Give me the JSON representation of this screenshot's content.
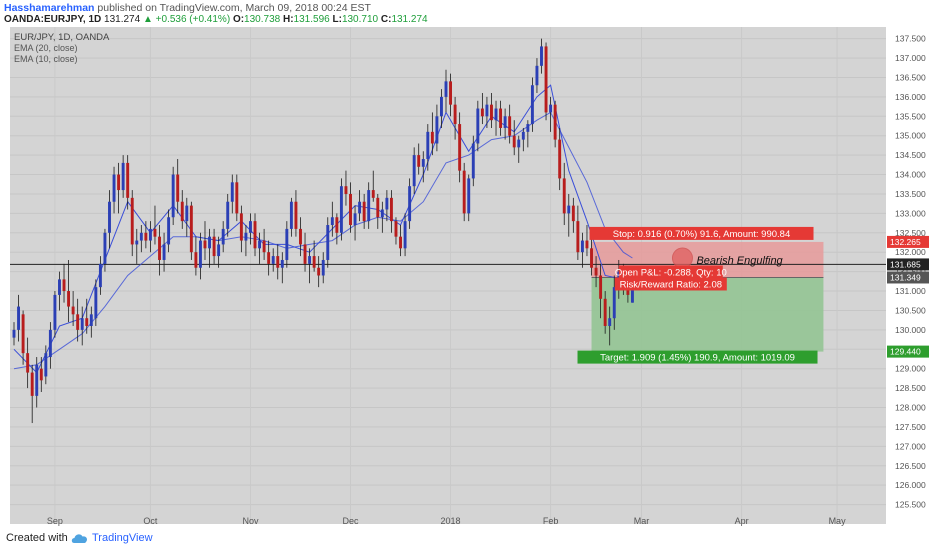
{
  "header": {
    "author": "Hasshamarehman",
    "published_text": "published on TradingView.com, March 09, 2018 00:24 EST",
    "symbol": "OANDA:EURJPY, 1D",
    "last": "131.274",
    "change": "+0.536 (+0.41%)",
    "open_label": "O:",
    "open": "130.738",
    "high_label": "H:",
    "high": "131.596",
    "low_label": "L:",
    "low": "130.710",
    "close_label": "C:",
    "close": "131.274"
  },
  "legend": {
    "title": "EUR/JPY, 1D, OANDA",
    "ema20": "EMA (20, close)",
    "ema10": "EMA (10, close)"
  },
  "footer": {
    "created_with": "Created with",
    "brand": "TradingView"
  },
  "colors": {
    "background": "#d4d4d4",
    "up_candle": "#2b3fb5",
    "down_candle": "#b81d1d",
    "ema": "#3a4ed8",
    "stop_zone": "#e69a9a",
    "target_zone": "#93c493",
    "stop_label": "#e53935",
    "target_label": "#2e9e2e"
  },
  "chart_data": {
    "type": "candlestick",
    "ylim": [
      125.0,
      137.8
    ],
    "y_ticks": [
      "125.500",
      "126.000",
      "126.500",
      "127.000",
      "127.500",
      "128.000",
      "128.500",
      "129.000",
      "129.500",
      "130.000",
      "130.500",
      "131.000",
      "131.500",
      "132.000",
      "132.500",
      "133.000",
      "133.500",
      "134.000",
      "134.500",
      "135.000",
      "135.500",
      "136.000",
      "136.500",
      "137.000",
      "137.500"
    ],
    "x_ticks": [
      {
        "label": "Sep",
        "x": 9
      },
      {
        "label": "Oct",
        "x": 30
      },
      {
        "label": "Nov",
        "x": 52
      },
      {
        "label": "Dec",
        "x": 74
      },
      {
        "label": "2018",
        "x": 96
      },
      {
        "label": "Feb",
        "x": 118
      },
      {
        "label": "Mar",
        "x": 138
      },
      {
        "label": "Apr",
        "x": 160
      },
      {
        "label": "May",
        "x": 181
      }
    ],
    "x_max": 190,
    "horizontal_line": "131.685",
    "price_labels": [
      {
        "value": "132.265",
        "kind": "stop"
      },
      {
        "value": "131.685",
        "kind": "line"
      },
      {
        "value": "131.349",
        "kind": "entry"
      },
      {
        "value": "129.440",
        "kind": "target"
      }
    ],
    "position": {
      "type": "short",
      "entry": 131.349,
      "stop": 132.265,
      "target": 129.44,
      "x_start": 127,
      "x_end": 178,
      "stop_text": "Stop: 0.916 (0.70%) 91.6, Amount: 990.84",
      "target_text": "Target: 1.909 (1.45%) 190.9, Amount: 1019.09",
      "pnl_text": "Open P&L: -0.288, Qty: 10",
      "rr_text": "Risk/Reward Ratio: 2.08"
    },
    "annotation": {
      "text": "Bearish Engulfing",
      "x": 147,
      "y": 131.8
    },
    "candles": [
      [
        0,
        129.8,
        130.2,
        129.6,
        130.0
      ],
      [
        1,
        130.0,
        130.9,
        129.7,
        130.6
      ],
      [
        2,
        130.4,
        130.5,
        129.1,
        129.4
      ],
      [
        3,
        129.4,
        129.8,
        128.5,
        128.9
      ],
      [
        4,
        128.9,
        129.1,
        127.6,
        128.3
      ],
      [
        5,
        128.3,
        129.3,
        128.0,
        129.1
      ],
      [
        6,
        129.0,
        129.3,
        128.4,
        128.7
      ],
      [
        7,
        128.8,
        129.6,
        128.6,
        129.4
      ],
      [
        8,
        129.3,
        130.2,
        129.0,
        130.0
      ],
      [
        9,
        130.0,
        131.0,
        129.8,
        130.9
      ],
      [
        10,
        130.9,
        131.5,
        130.5,
        131.3
      ],
      [
        11,
        131.3,
        131.7,
        130.7,
        131.0
      ],
      [
        12,
        131.0,
        131.8,
        130.2,
        130.6
      ],
      [
        13,
        130.6,
        131.0,
        130.1,
        130.4
      ],
      [
        14,
        130.4,
        130.8,
        129.7,
        130.0
      ],
      [
        15,
        130.0,
        130.6,
        129.6,
        130.3
      ],
      [
        16,
        130.3,
        130.8,
        129.9,
        130.1
      ],
      [
        17,
        130.1,
        130.6,
        129.8,
        130.4
      ],
      [
        18,
        130.3,
        131.3,
        130.1,
        131.1
      ],
      [
        19,
        131.1,
        131.9,
        130.9,
        131.7
      ],
      [
        20,
        131.7,
        132.6,
        131.5,
        132.5
      ],
      [
        21,
        132.5,
        133.6,
        132.1,
        133.3
      ],
      [
        22,
        133.3,
        134.2,
        133.0,
        134.0
      ],
      [
        23,
        134.0,
        134.3,
        133.0,
        133.6
      ],
      [
        24,
        133.6,
        134.5,
        133.4,
        134.3
      ],
      [
        25,
        134.3,
        134.5,
        133.1,
        133.4
      ],
      [
        26,
        133.4,
        133.6,
        131.9,
        132.2
      ],
      [
        27,
        132.2,
        132.6,
        131.7,
        132.3
      ],
      [
        28,
        132.3,
        132.7,
        132.0,
        132.5
      ],
      [
        29,
        132.5,
        132.8,
        132.1,
        132.3
      ],
      [
        30,
        132.3,
        132.8,
        132.0,
        132.6
      ],
      [
        31,
        132.6,
        133.2,
        132.2,
        132.4
      ],
      [
        32,
        132.4,
        132.7,
        131.4,
        131.8
      ],
      [
        33,
        131.8,
        132.5,
        131.5,
        132.2
      ],
      [
        34,
        132.2,
        133.1,
        132.0,
        132.9
      ],
      [
        35,
        132.9,
        134.2,
        132.7,
        134.0
      ],
      [
        36,
        134.0,
        134.4,
        133.0,
        133.3
      ],
      [
        37,
        133.3,
        133.6,
        132.6,
        132.8
      ],
      [
        38,
        132.8,
        133.4,
        132.4,
        133.2
      ],
      [
        39,
        133.2,
        133.3,
        131.8,
        132.0
      ],
      [
        40,
        132.0,
        132.4,
        131.4,
        131.6
      ],
      [
        41,
        131.6,
        132.5,
        131.3,
        132.3
      ],
      [
        42,
        132.3,
        132.8,
        131.8,
        132.1
      ],
      [
        43,
        132.1,
        132.6,
        131.6,
        132.4
      ],
      [
        44,
        132.4,
        132.6,
        131.7,
        131.9
      ],
      [
        45,
        131.9,
        132.4,
        131.6,
        132.2
      ],
      [
        46,
        132.2,
        132.8,
        132.0,
        132.6
      ],
      [
        47,
        132.6,
        133.5,
        132.4,
        133.3
      ],
      [
        48,
        133.3,
        134.0,
        133.0,
        133.8
      ],
      [
        49,
        133.8,
        134.0,
        132.8,
        133.0
      ],
      [
        50,
        133.0,
        133.2,
        132.0,
        132.3
      ],
      [
        51,
        132.3,
        132.7,
        131.9,
        132.5
      ],
      [
        52,
        132.5,
        133.0,
        132.2,
        132.8
      ],
      [
        53,
        132.8,
        133.0,
        131.9,
        132.1
      ],
      [
        54,
        132.1,
        132.5,
        131.7,
        132.3
      ],
      [
        55,
        132.3,
        132.6,
        131.8,
        132.0
      ],
      [
        56,
        132.0,
        132.3,
        131.4,
        131.7
      ],
      [
        57,
        131.7,
        132.1,
        131.5,
        131.9
      ],
      [
        58,
        131.9,
        132.2,
        131.3,
        131.6
      ],
      [
        59,
        131.6,
        132.0,
        131.2,
        131.8
      ],
      [
        60,
        131.8,
        132.8,
        131.6,
        132.6
      ],
      [
        61,
        132.6,
        133.4,
        132.4,
        133.3
      ],
      [
        62,
        133.3,
        133.6,
        132.4,
        132.6
      ],
      [
        63,
        132.6,
        132.9,
        131.9,
        132.2
      ],
      [
        64,
        132.2,
        132.5,
        131.5,
        131.7
      ],
      [
        65,
        131.7,
        132.1,
        131.2,
        131.9
      ],
      [
        66,
        131.9,
        132.3,
        131.5,
        131.6
      ],
      [
        67,
        131.6,
        131.9,
        131.1,
        131.4
      ],
      [
        68,
        131.4,
        132.0,
        131.2,
        131.8
      ],
      [
        69,
        131.8,
        132.9,
        131.6,
        132.7
      ],
      [
        70,
        132.7,
        133.3,
        132.4,
        132.9
      ],
      [
        71,
        132.9,
        133.0,
        132.2,
        132.5
      ],
      [
        72,
        132.5,
        133.9,
        132.3,
        133.7
      ],
      [
        73,
        133.7,
        134.1,
        133.2,
        133.5
      ],
      [
        74,
        133.5,
        133.8,
        132.5,
        132.7
      ],
      [
        75,
        132.7,
        133.2,
        132.3,
        133.0
      ],
      [
        76,
        133.0,
        133.6,
        132.8,
        133.3
      ],
      [
        77,
        133.3,
        133.5,
        132.6,
        132.8
      ],
      [
        78,
        132.8,
        133.8,
        132.6,
        133.6
      ],
      [
        79,
        133.6,
        134.1,
        133.3,
        133.4
      ],
      [
        80,
        133.4,
        133.5,
        132.6,
        132.9
      ],
      [
        81,
        132.9,
        133.3,
        132.5,
        133.1
      ],
      [
        82,
        133.1,
        133.6,
        132.8,
        133.4
      ],
      [
        83,
        133.4,
        133.6,
        132.5,
        132.8
      ],
      [
        84,
        132.8,
        132.9,
        132.2,
        132.4
      ],
      [
        85,
        132.4,
        132.7,
        131.9,
        132.1
      ],
      [
        86,
        132.1,
        133.0,
        131.9,
        132.8
      ],
      [
        87,
        132.8,
        133.9,
        132.6,
        133.7
      ],
      [
        88,
        133.7,
        134.7,
        133.5,
        134.5
      ],
      [
        89,
        134.5,
        134.8,
        134.0,
        134.2
      ],
      [
        90,
        134.2,
        134.6,
        133.8,
        134.4
      ],
      [
        91,
        134.4,
        135.3,
        134.1,
        135.1
      ],
      [
        92,
        135.1,
        135.6,
        134.5,
        134.8
      ],
      [
        93,
        134.8,
        135.8,
        134.6,
        135.5
      ],
      [
        94,
        135.5,
        136.2,
        135.2,
        136.0
      ],
      [
        95,
        136.0,
        136.7,
        135.6,
        136.4
      ],
      [
        96,
        136.4,
        136.6,
        135.5,
        135.8
      ],
      [
        97,
        135.8,
        136.0,
        134.9,
        135.3
      ],
      [
        98,
        135.3,
        135.6,
        133.8,
        134.1
      ],
      [
        99,
        134.1,
        134.3,
        132.8,
        133.0
      ],
      [
        100,
        133.0,
        134.0,
        132.8,
        133.9
      ],
      [
        101,
        133.9,
        135.0,
        133.7,
        134.8
      ],
      [
        102,
        134.8,
        135.9,
        134.6,
        135.7
      ],
      [
        103,
        135.7,
        136.1,
        135.3,
        135.5
      ],
      [
        104,
        135.5,
        136.0,
        135.2,
        135.8
      ],
      [
        105,
        135.8,
        136.1,
        135.2,
        135.4
      ],
      [
        106,
        135.4,
        135.9,
        135.0,
        135.7
      ],
      [
        107,
        135.7,
        135.9,
        135.0,
        135.2
      ],
      [
        108,
        135.2,
        135.7,
        134.9,
        135.5
      ],
      [
        109,
        135.5,
        135.8,
        134.8,
        135.0
      ],
      [
        110,
        135.0,
        135.4,
        134.5,
        134.7
      ],
      [
        111,
        134.7,
        135.0,
        134.3,
        134.9
      ],
      [
        112,
        134.9,
        135.2,
        134.6,
        135.1
      ],
      [
        113,
        135.1,
        135.4,
        134.7,
        135.3
      ],
      [
        114,
        135.3,
        136.5,
        135.1,
        136.3
      ],
      [
        115,
        136.3,
        137.0,
        136.1,
        136.8
      ],
      [
        116,
        136.8,
        137.5,
        136.6,
        137.3
      ],
      [
        117,
        137.3,
        137.4,
        135.4,
        135.6
      ],
      [
        118,
        135.6,
        136.0,
        135.1,
        135.8
      ],
      [
        119,
        135.8,
        135.9,
        134.7,
        134.9
      ],
      [
        120,
        134.9,
        135.2,
        133.6,
        133.9
      ],
      [
        121,
        133.9,
        134.3,
        132.7,
        133.0
      ],
      [
        122,
        133.0,
        133.5,
        132.4,
        133.2
      ],
      [
        123,
        133.2,
        133.4,
        132.5,
        132.8
      ],
      [
        124,
        132.8,
        133.2,
        131.8,
        132.0
      ],
      [
        125,
        132.0,
        132.5,
        131.6,
        132.3
      ],
      [
        126,
        132.3,
        132.7,
        131.9,
        132.1
      ],
      [
        127,
        132.1,
        132.4,
        131.4,
        131.6
      ],
      [
        128,
        131.6,
        131.9,
        131.1,
        131.4
      ],
      [
        129,
        131.4,
        131.7,
        130.3,
        130.8
      ],
      [
        130,
        130.8,
        131.0,
        129.9,
        130.1
      ],
      [
        131,
        130.1,
        130.6,
        129.6,
        130.3
      ],
      [
        132,
        130.3,
        131.4,
        130.0,
        131.1
      ],
      [
        133,
        131.1,
        131.8,
        130.8,
        131.5
      ],
      [
        134,
        131.5,
        131.7,
        130.9,
        131.1
      ],
      [
        135,
        131.1,
        131.3,
        130.7,
        130.9
      ],
      [
        136,
        130.7,
        131.6,
        130.7,
        131.3
      ]
    ],
    "ema20": [
      [
        0,
        129.0
      ],
      [
        5,
        129.1
      ],
      [
        10,
        129.5
      ],
      [
        15,
        129.9
      ],
      [
        20,
        130.6
      ],
      [
        25,
        131.4
      ],
      [
        30,
        131.9
      ],
      [
        35,
        132.4
      ],
      [
        40,
        132.4
      ],
      [
        45,
        132.3
      ],
      [
        50,
        132.4
      ],
      [
        55,
        132.3
      ],
      [
        60,
        132.1
      ],
      [
        65,
        132.2
      ],
      [
        70,
        132.3
      ],
      [
        75,
        132.7
      ],
      [
        80,
        132.9
      ],
      [
        85,
        132.8
      ],
      [
        90,
        133.3
      ],
      [
        95,
        134.3
      ],
      [
        100,
        134.5
      ],
      [
        105,
        134.9
      ],
      [
        110,
        135.0
      ],
      [
        115,
        135.4
      ],
      [
        118,
        135.6
      ],
      [
        122,
        134.7
      ],
      [
        126,
        133.8
      ],
      [
        130,
        132.6
      ],
      [
        134,
        132.0
      ],
      [
        136,
        131.85
      ]
    ],
    "ema10": [
      [
        0,
        129.5
      ],
      [
        5,
        128.9
      ],
      [
        10,
        130.1
      ],
      [
        15,
        130.3
      ],
      [
        20,
        131.8
      ],
      [
        25,
        133.3
      ],
      [
        30,
        132.5
      ],
      [
        35,
        133.2
      ],
      [
        40,
        132.4
      ],
      [
        45,
        132.3
      ],
      [
        50,
        132.8
      ],
      [
        55,
        132.2
      ],
      [
        60,
        132.2
      ],
      [
        65,
        132.0
      ],
      [
        70,
        132.6
      ],
      [
        75,
        133.2
      ],
      [
        80,
        133.1
      ],
      [
        85,
        132.7
      ],
      [
        90,
        134.0
      ],
      [
        95,
        135.6
      ],
      [
        100,
        134.6
      ],
      [
        105,
        135.5
      ],
      [
        110,
        135.1
      ],
      [
        115,
        136.0
      ],
      [
        118,
        136.3
      ],
      [
        122,
        134.1
      ],
      [
        126,
        132.8
      ],
      [
        130,
        131.4
      ],
      [
        134,
        131.3
      ],
      [
        136,
        131.25
      ]
    ]
  }
}
